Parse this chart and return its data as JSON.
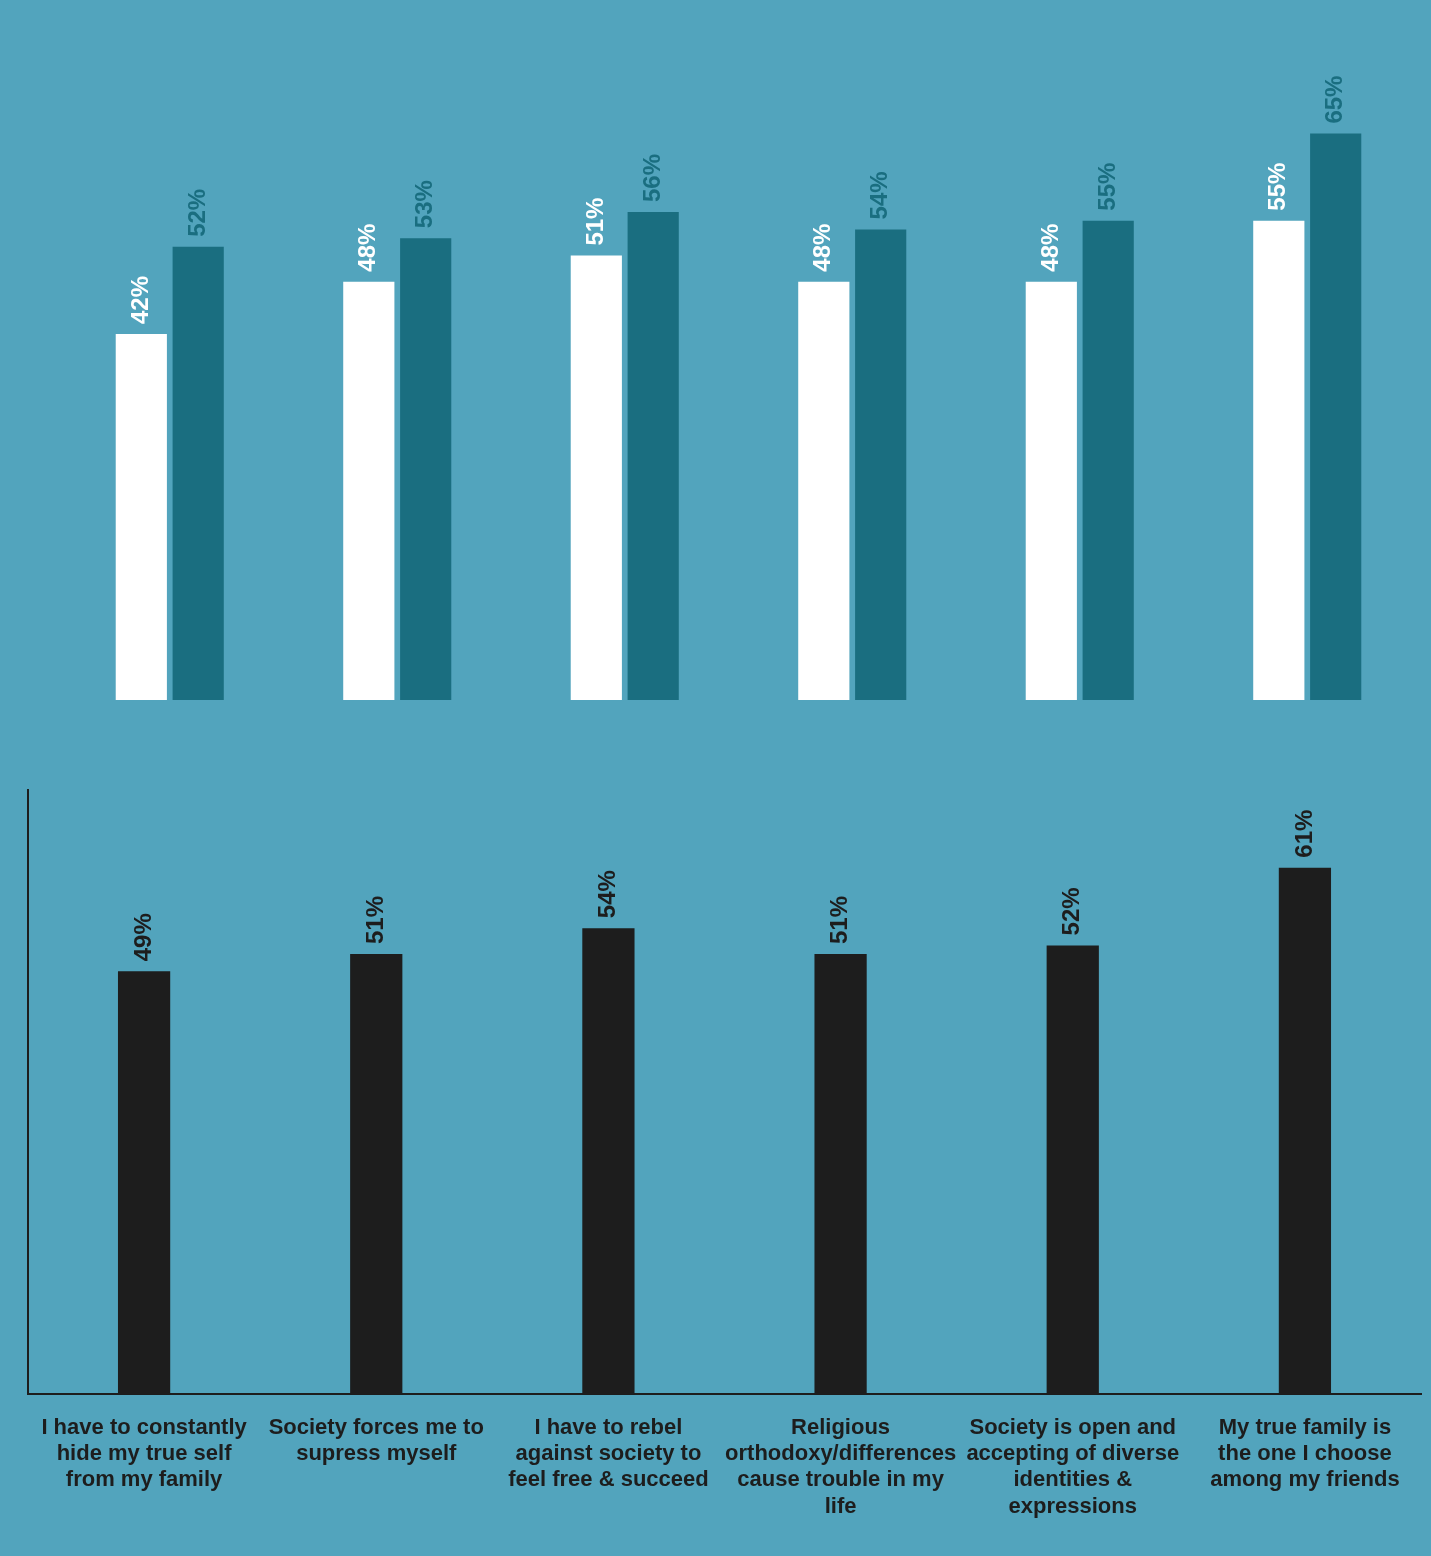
{
  "chart_data": [
    {
      "type": "bar",
      "categories": [
        null,
        null,
        null,
        null,
        null,
        null
      ],
      "series": [
        {
          "color": "#ffffff",
          "values": [
            42,
            48,
            51,
            48,
            48,
            55
          ],
          "value_labels": [
            "42%",
            "48%",
            "51%",
            "48%",
            "48%",
            "55%"
          ]
        },
        {
          "color": "#1a6e80",
          "values": [
            52,
            53,
            56,
            54,
            55,
            65
          ],
          "value_labels": [
            "52%",
            "53%",
            "56%",
            "54%",
            "55%",
            "65%"
          ]
        }
      ],
      "tick_labels": false,
      "grid": false
    },
    {
      "type": "bar",
      "categories": [
        "I have to constantly hide my true self from my family",
        "Society forces me to supress myself",
        "I have to rebel against society to feel free & succeed",
        "Religious orthodoxy/differences cause trouble in my life",
        "Society is open and accepting of diverse identities & expressions",
        "My true family is the one I choose among my friends"
      ],
      "series": [
        {
          "color": "#1d1d1d",
          "values": [
            49,
            51,
            54,
            51,
            52,
            61
          ],
          "value_labels": [
            "49%",
            "51%",
            "54%",
            "51%",
            "52%",
            "61%"
          ]
        }
      ],
      "grid": false
    }
  ]
}
